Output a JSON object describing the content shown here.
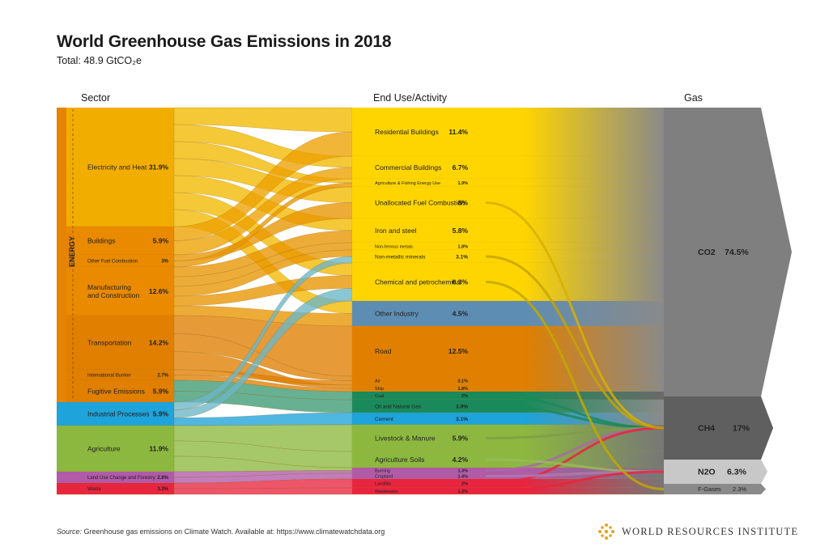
{
  "header": {
    "title": "World Greenhouse Gas Emissions in 2018",
    "subtitle": "Total: 48.9 GtCO₂e"
  },
  "columns": {
    "sector": "Sector",
    "end_use": "End Use/Activity",
    "gas": "Gas"
  },
  "energy_label": "ENERGY",
  "sectors": [
    {
      "name": "Electricity and Heat",
      "value": "31.9%",
      "color": "#F2AE00"
    },
    {
      "name": "Buildings",
      "value": "5.9%",
      "color": "#E98A00"
    },
    {
      "name": "Other Fuel Combustion",
      "value": "3%",
      "color": "#E98A00"
    },
    {
      "name": "Manufacturing and Construction",
      "value": "12.6%",
      "color": "#E98A00"
    },
    {
      "name": "Transportation",
      "value": "14.2%",
      "color": "#E07F00"
    },
    {
      "name": "International Bunker",
      "value": "2.7%",
      "color": "#E07F00"
    },
    {
      "name": "Fugitive Emissions",
      "value": "5.9%",
      "color": "#E07F00"
    },
    {
      "name": "Industrial Processes",
      "value": "5.9%",
      "color": "#1EA3DA"
    },
    {
      "name": "Agriculture",
      "value": "11.9%",
      "color": "#8DB83F"
    },
    {
      "name": "Land Use Change and Forestry",
      "value": "2.8%",
      "color": "#B05AA8"
    },
    {
      "name": "Waste",
      "value": "3.3%",
      "color": "#E8253F"
    }
  ],
  "end_uses": [
    {
      "name": "Residential Buildings",
      "value": "11.4%"
    },
    {
      "name": "Commercial Buildings",
      "value": "6.7%"
    },
    {
      "name": "Agriculture & Fishing Energy Use",
      "value": "1.9%"
    },
    {
      "name": "Unallocated Fuel Combustion",
      "value": "8%"
    },
    {
      "name": "Iron and steel",
      "value": "5.8%"
    },
    {
      "name": "Non-ferrous metals",
      "value": "1.8%"
    },
    {
      "name": "Non-metallic minerals",
      "value": "3.1%"
    },
    {
      "name": "Chemical and petrochemical",
      "value": "6.3%"
    },
    {
      "name": "Other Industry",
      "value": "4.5%"
    },
    {
      "name": "Road",
      "value": "12.5%"
    },
    {
      "name": "Air",
      "value": "2.1%"
    },
    {
      "name": "Ship",
      "value": "1.8%"
    },
    {
      "name": "Coal",
      "value": "2%"
    },
    {
      "name": "Oil and Natural Gas",
      "value": "3.9%"
    },
    {
      "name": "Cement",
      "value": "3.1%"
    },
    {
      "name": "Livestock & Manure",
      "value": "5.9%"
    },
    {
      "name": "Agriculture Soils",
      "value": "4.2%"
    },
    {
      "name": "Burning",
      "value": "1.3%"
    },
    {
      "name": "Cropland",
      "value": "1.4%"
    },
    {
      "name": "Landfills",
      "value": "2%"
    },
    {
      "name": "Wastewater",
      "value": "1.3%"
    }
  ],
  "gases": [
    {
      "name": "CO2",
      "value": "74.5%",
      "color": "#7F7F7F"
    },
    {
      "name": "CH4",
      "value": "17%",
      "color": "#5F5F5F"
    },
    {
      "name": "N2O",
      "value": "6.3%",
      "color": "#C8C8C8"
    },
    {
      "name": "F-Gases",
      "value": "2.3%",
      "color": "#8A8A8A"
    }
  ],
  "footer": {
    "source_label": "Source:",
    "source_text": "Greenhouse gas emissions on Climate Watch. Available at: https://www.climatewatchdata.org",
    "org": "WORLD RESOURCES INSTITUTE"
  }
}
